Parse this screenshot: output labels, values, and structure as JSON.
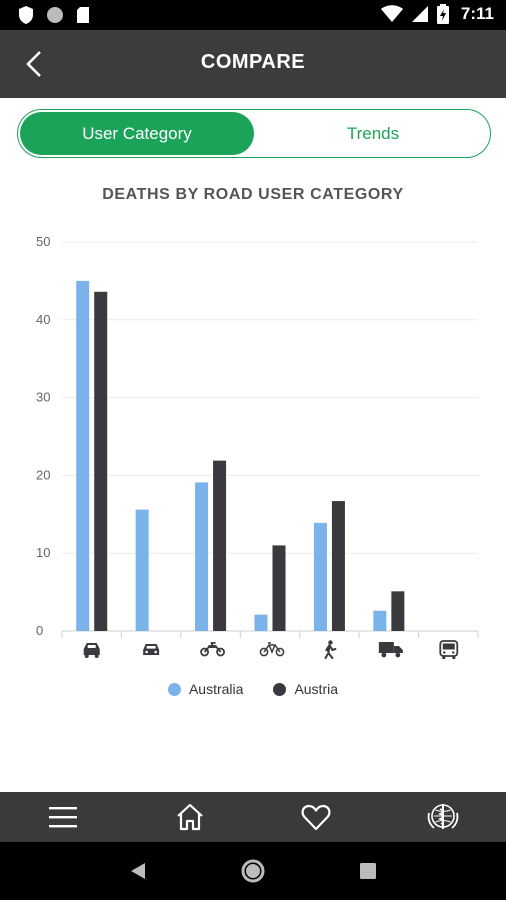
{
  "status_bar": {
    "time": "7:11",
    "left_icons": [
      "shield-icon",
      "circle-icon",
      "sd-card-icon"
    ],
    "right_icons": [
      "wifi-icon",
      "signal-icon",
      "battery-icon"
    ]
  },
  "app_bar": {
    "title": "COMPARE",
    "back_icon": "chevron-left-icon"
  },
  "tabs": [
    {
      "label": "User Category",
      "active": true
    },
    {
      "label": "Trends",
      "active": false
    }
  ],
  "colors": {
    "accent": "#1ba35a",
    "australia": "#7ab3ea",
    "austria": "#3a3a3e",
    "app_bar": "#3c3c3c"
  },
  "chart_data": {
    "type": "bar",
    "title": "DEATHS BY ROAD USER CATEGORY",
    "categories": [
      "car-driver-icon",
      "car-icon",
      "motorcycle-icon",
      "bicycle-icon",
      "pedestrian-icon",
      "truck-icon",
      "bus-icon"
    ],
    "series": [
      {
        "name": "Australia",
        "values": [
          45,
          15.6,
          19.1,
          2.1,
          13.9,
          2.6,
          0
        ]
      },
      {
        "name": "Austria",
        "values": [
          43.6,
          0,
          21.9,
          11,
          16.7,
          5.1,
          0
        ]
      }
    ],
    "ylim": [
      0,
      50
    ],
    "yticks": [
      0,
      10,
      20,
      30,
      40,
      50
    ],
    "grid": true,
    "legend": "bottom"
  },
  "legend": {
    "items": [
      "Australia",
      "Austria"
    ]
  },
  "bottom_nav": {
    "items": [
      "menu-icon",
      "home-icon",
      "heart-icon",
      "who-emblem-icon"
    ]
  },
  "system_nav": [
    "back-triangle-icon",
    "home-circle-icon",
    "recents-square-icon"
  ]
}
